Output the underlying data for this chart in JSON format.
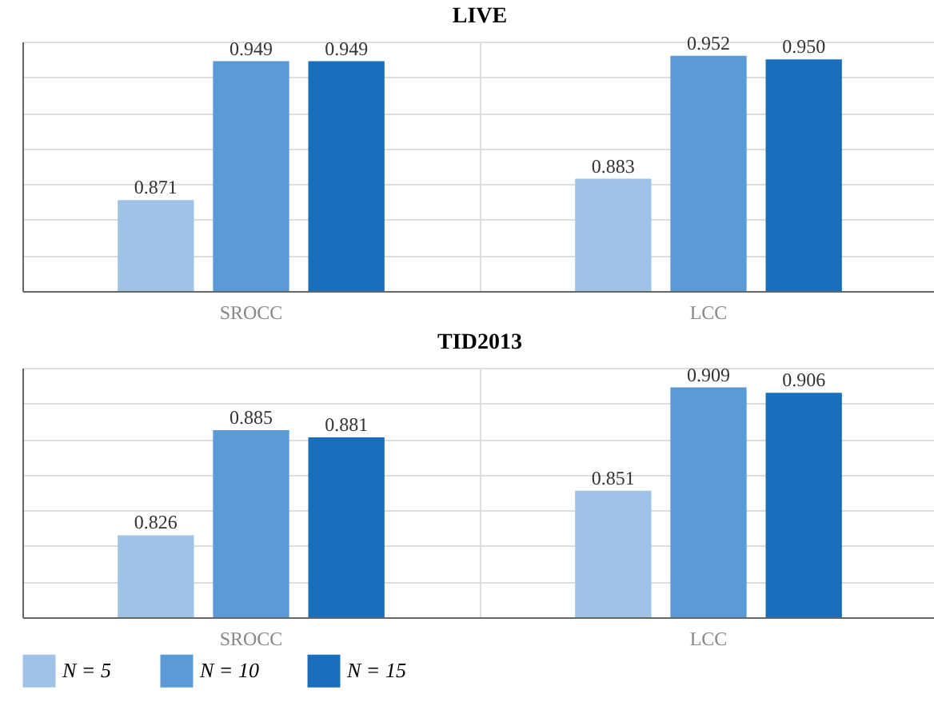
{
  "chart_data": [
    {
      "type": "bar",
      "title": "LIVE",
      "categories": [
        "SROCC",
        "LCC"
      ],
      "series": [
        {
          "name": "N = 5",
          "color": "#9fc3e7",
          "values": [
            0.871,
            0.883
          ]
        },
        {
          "name": "N = 10",
          "color": "#5b9bd5",
          "values": [
            0.949,
            0.952
          ]
        },
        {
          "name": "N = 15",
          "color": "#1a6fbd",
          "values": [
            0.949,
            0.95
          ],
          "value_labels": [
            "0.949",
            "0.950"
          ]
        }
      ],
      "ylim": [
        0.82,
        0.96
      ],
      "yticks": [
        {
          "value": 0.82,
          "label": null
        },
        {
          "value": 0.84,
          "label": null
        },
        {
          "value": 0.86,
          "label": null
        },
        {
          "value": 0.88,
          "label": null
        },
        {
          "value": 0.9,
          "label": null
        },
        {
          "value": 0.92,
          "label": null
        },
        {
          "value": 0.94,
          "label": null
        },
        {
          "value": 0.96,
          "label": null
        }
      ],
      "grid": true,
      "data_labels": true,
      "legend": "bottom"
    },
    {
      "type": "bar",
      "title": "TID2013",
      "categories": [
        "SROCC",
        "LCC"
      ],
      "series": [
        {
          "name": "N = 5",
          "color": "#9fc3e7",
          "values": [
            0.826,
            0.851
          ]
        },
        {
          "name": "N = 10",
          "color": "#5b9bd5",
          "values": [
            0.885,
            0.909
          ]
        },
        {
          "name": "N = 15",
          "color": "#1a6fbd",
          "values": [
            0.881,
            0.906
          ]
        }
      ],
      "ylim": [
        0.78,
        0.92
      ],
      "yticks": [
        {
          "value": 0.78,
          "label": null
        },
        {
          "value": 0.8,
          "label": null
        },
        {
          "value": 0.82,
          "label": null
        },
        {
          "value": 0.84,
          "label": null
        },
        {
          "value": 0.86,
          "label": null
        },
        {
          "value": 0.88,
          "label": null
        },
        {
          "value": 0.9,
          "label": null
        },
        {
          "value": 0.92,
          "label": null
        }
      ],
      "grid": true,
      "data_labels": true,
      "legend": "bottom"
    }
  ]
}
